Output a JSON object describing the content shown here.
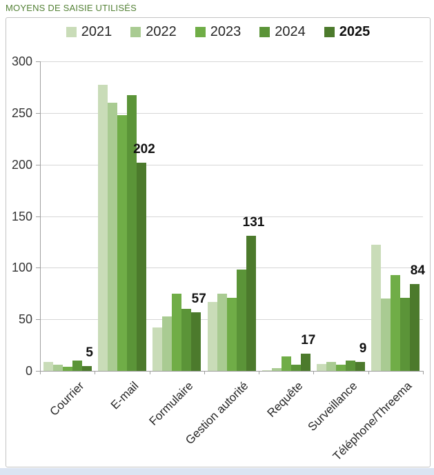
{
  "title": "MOYENS DE SAISIE UTILISÉS",
  "colors": {
    "title": "#538135",
    "series": [
      "#c9dcb8",
      "#a9cb92",
      "#70ad47",
      "#5b9438",
      "#4c7a2c"
    ],
    "gridline": "#d6d6d6",
    "axis": "#9e9e9e",
    "frame_border": "#c3c3c3",
    "bottom_strip": "#dbe4f2",
    "text": "#262626"
  },
  "chart_data": {
    "type": "bar",
    "title": "MOYENS DE SAISIE UTILISÉS",
    "categories": [
      "Courrier",
      "E-mail",
      "Formulaire",
      "Gestion autorité",
      "Requête",
      "Surveillance",
      "Téléphone/Threema"
    ],
    "series": [
      {
        "name": "2021",
        "values": [
          9,
          277,
          42,
          67,
          1,
          7,
          122
        ]
      },
      {
        "name": "2022",
        "values": [
          6,
          260,
          53,
          75,
          3,
          9,
          70
        ]
      },
      {
        "name": "2023",
        "values": [
          4,
          248,
          75,
          71,
          14,
          6,
          93
        ]
      },
      {
        "name": "2024",
        "values": [
          10,
          267,
          60,
          98,
          6,
          10,
          71
        ]
      },
      {
        "name": "2025",
        "values": [
          5,
          202,
          57,
          131,
          17,
          9,
          84
        ],
        "bold_in_legend": true,
        "show_data_labels": true
      }
    ],
    "data_labels_shown": [
      5,
      202,
      57,
      131,
      17,
      9,
      84
    ],
    "ylim": [
      0,
      300
    ],
    "ytick_step": 50,
    "yticks": [
      "0",
      "50",
      "100",
      "150",
      "200",
      "250",
      "300"
    ],
    "grid": true,
    "legend_position": "top"
  }
}
